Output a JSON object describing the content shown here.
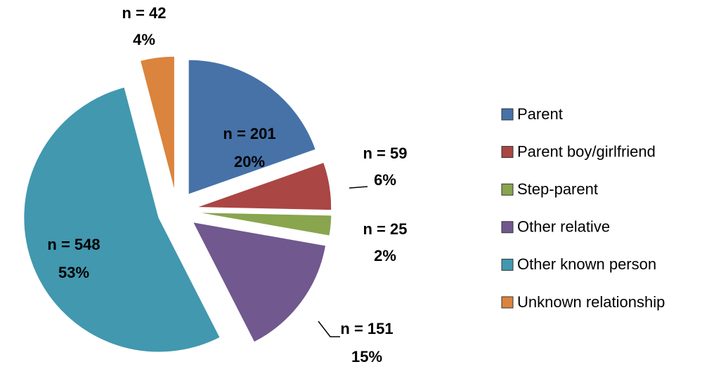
{
  "chart_data": {
    "type": "pie",
    "categories": [
      "Parent",
      "Parent boy/girlfriend",
      "Step-parent",
      "Other relative",
      "Other known person",
      "Unknown relationship"
    ],
    "values": [
      201,
      59,
      25,
      151,
      548,
      42
    ],
    "value_labels": [
      "n = 201",
      "n = 59",
      "n = 25",
      "n = 151",
      "n = 548",
      "n = 42"
    ],
    "percent_labels": [
      "20%",
      "6%",
      "2%",
      "15%",
      "53%",
      "4%"
    ],
    "colors": [
      "#4672a8",
      "#aa4643",
      "#89a54e",
      "#71588f",
      "#4198af",
      "#db843d"
    ],
    "legend": "right"
  }
}
